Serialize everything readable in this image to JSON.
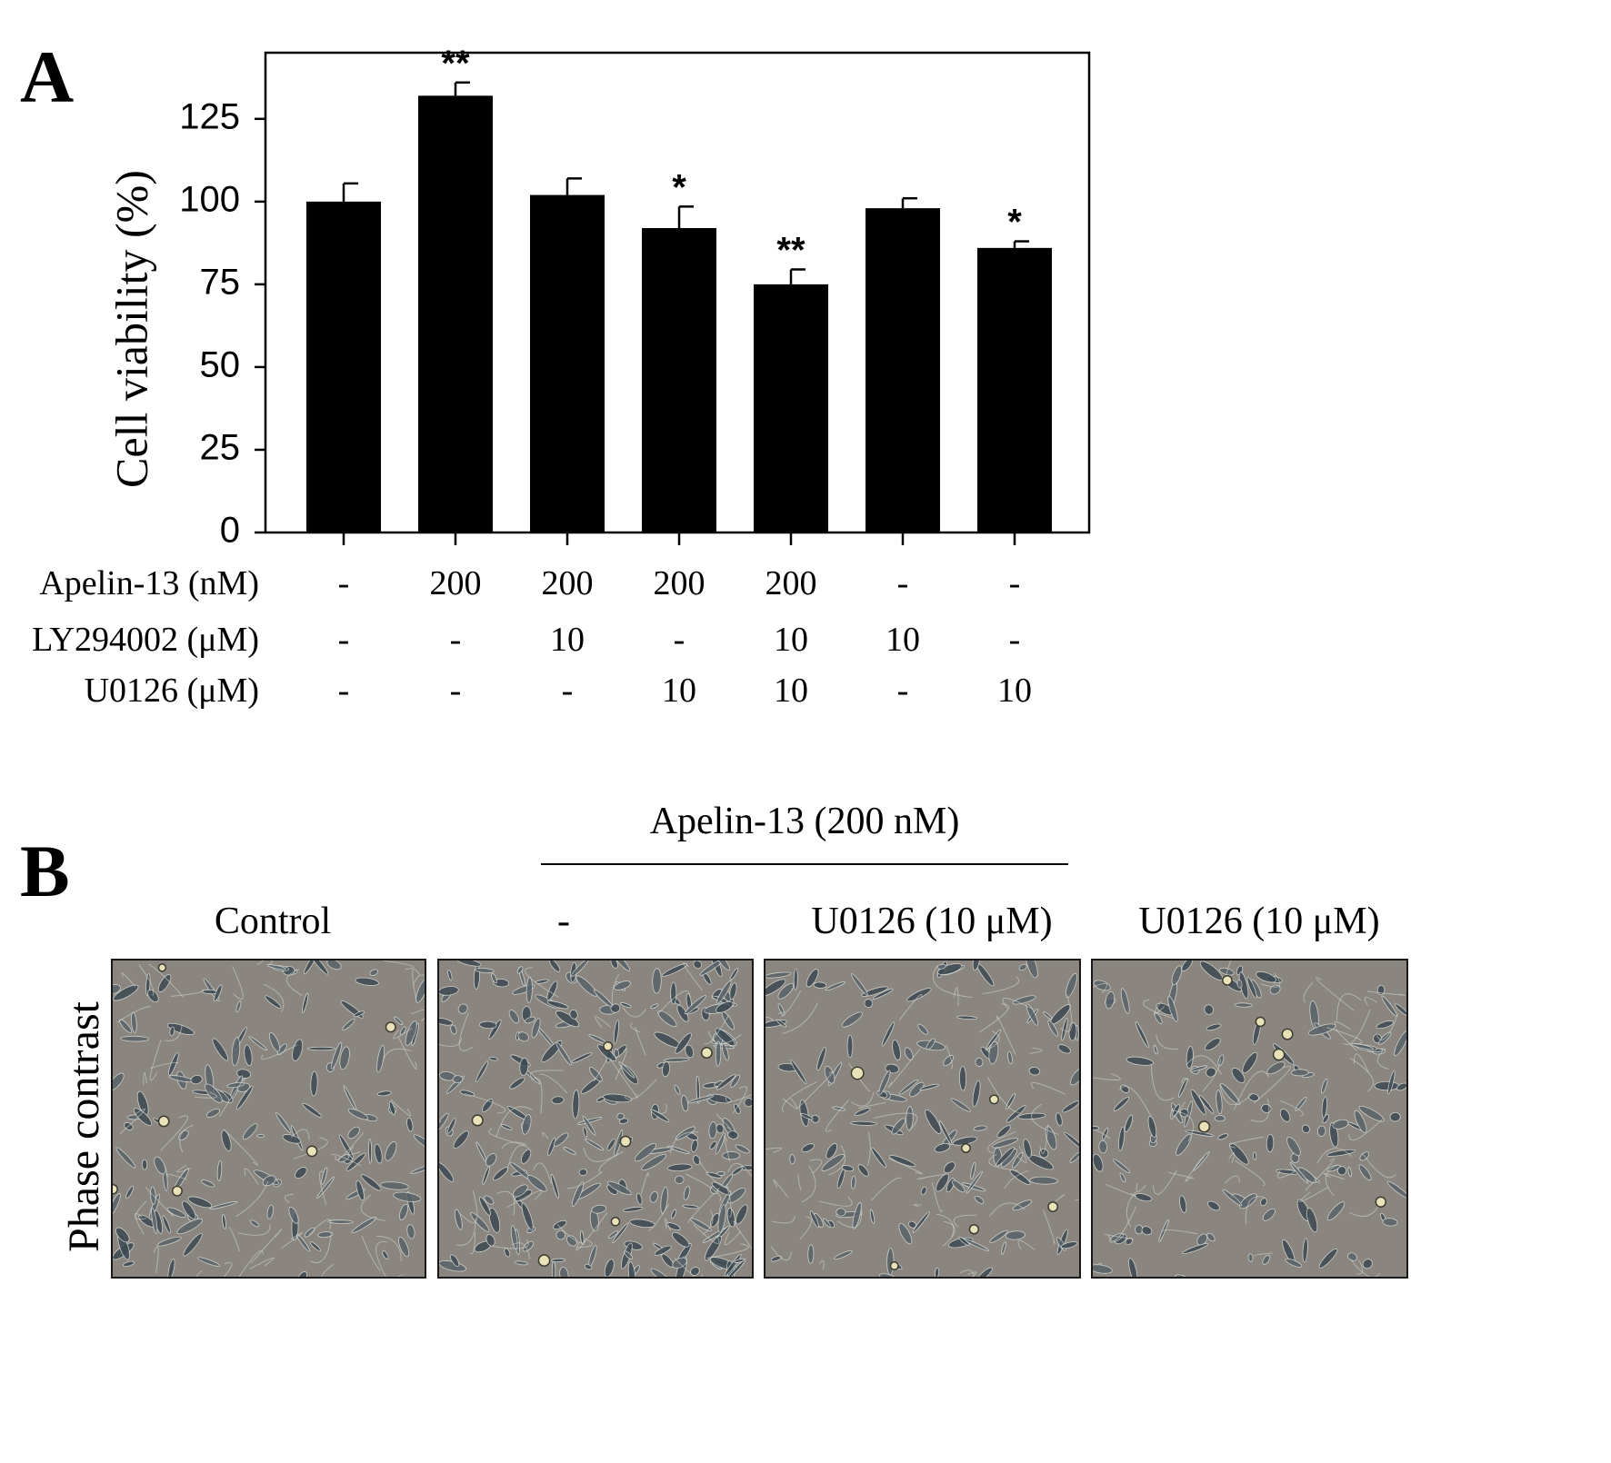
{
  "panel_a": {
    "letter": "A"
  },
  "panel_b": {
    "letter": "B",
    "group_header": "Apelin-13 (200 nM)",
    "row_label": "Phase contrast",
    "columns": [
      {
        "title": "Control"
      },
      {
        "title": "-"
      },
      {
        "title": "U0126 (10 μM)"
      },
      {
        "title": "U0126 (10 μM)"
      }
    ]
  },
  "conditions": {
    "rows": [
      {
        "label": "Apelin-13 (nM)",
        "values": [
          "-",
          "200",
          "200",
          "200",
          "200",
          "-",
          "-"
        ]
      },
      {
        "label": "LY294002 (μM)",
        "values": [
          "-",
          "-",
          "10",
          "-",
          "10",
          "10",
          "-"
        ]
      },
      {
        "label": "U0126 (μM)",
        "values": [
          "-",
          "-",
          "-",
          "10",
          "10",
          "-",
          "10"
        ]
      }
    ]
  },
  "chart_data": {
    "type": "bar",
    "title": "",
    "xlabel": "",
    "ylabel": "Cell viability (%)",
    "ylim": [
      0,
      145
    ],
    "yticks": [
      0,
      25,
      50,
      75,
      100,
      125
    ],
    "grid": false,
    "bar_color": "#000000",
    "values": [
      100,
      132,
      102,
      92,
      75,
      98,
      86
    ],
    "errors": [
      5.5,
      4,
      5,
      6.5,
      4.5,
      3,
      2
    ],
    "significance": [
      "",
      "**",
      "",
      "*",
      "**",
      "",
      "*"
    ]
  }
}
